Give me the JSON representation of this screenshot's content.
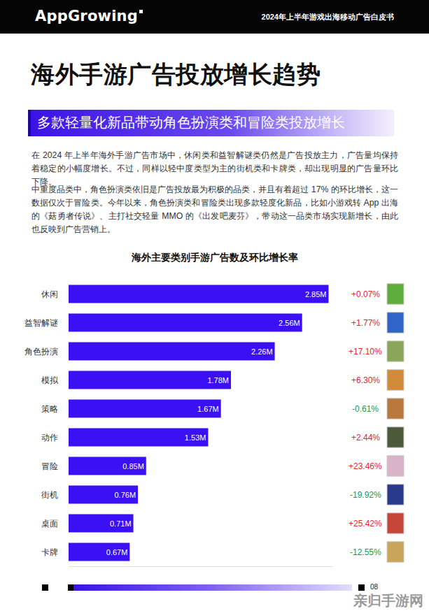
{
  "header": {
    "logo": "AppGrowing",
    "report": "2024年上半年游戏出海移动广告白皮书"
  },
  "title": "海外手游广告投放增长趋势",
  "subtitle": "多款轻量化新品带动角色扮演类和冒险类投放增长",
  "paragraphs": [
    "在 2024 年上半年海外手游广告市场中，休闲类和益智解谜类仍然是广告投放主力，广告量均保持着稳定的小幅度增长。不过，同样以轻中度类型为主的街机类和卡牌类，却出现明显的广告量环比下降。",
    "中重度品类中，角色扮演类依旧是广告投放最为积极的品类，并且有着超过 17% 的环比增长，这一数据仅次于冒险类。今年以来，角色扮演类和冒险类出现多款轻度化新品，比如小游戏转 App 出海的《菇勇者传说》、主打社交轻量 MMO 的《出发吧麦芬》，带动这一品类市场实现新增长，由此也反映到广告营销上。"
  ],
  "chart_data": {
    "type": "bar",
    "orientation": "horizontal",
    "title": "海外主要类别手游广告数及环比增长率",
    "categories": [
      "休闲",
      "益智解谜",
      "角色扮演",
      "模拟",
      "策略",
      "动作",
      "冒险",
      "街机",
      "桌面",
      "卡牌"
    ],
    "values": [
      2.85,
      2.56,
      2.26,
      1.78,
      1.67,
      1.53,
      0.85,
      0.76,
      0.71,
      0.67
    ],
    "value_labels": [
      "2.85M",
      "2.56M",
      "2.26M",
      "1.78M",
      "1.67M",
      "1.53M",
      "0.85M",
      "0.76M",
      "0.71M",
      "0.67M"
    ],
    "color": "#3b10f5",
    "data_labels": true,
    "xlim": [
      0,
      2.9
    ],
    "xticks": [],
    "grid": false,
    "tick_labels": "y",
    "growth_rate": {
      "values": [
        0.07,
        1.77,
        17.1,
        6.3,
        -0.61,
        2.44,
        23.46,
        -19.92,
        25.42,
        -12.55
      ],
      "value_labels": [
        "+0.07%",
        "+1.77%",
        "+17.10%",
        "+6.30%",
        "-0.61%",
        "+2.44%",
        "+23.46%",
        "-19.92%",
        "+25.42%",
        "-12.55%"
      ],
      "colors": [
        "#e3262e",
        "#e3262e",
        "#e3262e",
        "#e3262e",
        "#1a9a4b",
        "#e3262e",
        "#e3262e",
        "#1a9a4b",
        "#e3262e",
        "#1a9a4b"
      ]
    }
  },
  "footer": {
    "page": "08"
  },
  "watermark": "亲归手游网"
}
